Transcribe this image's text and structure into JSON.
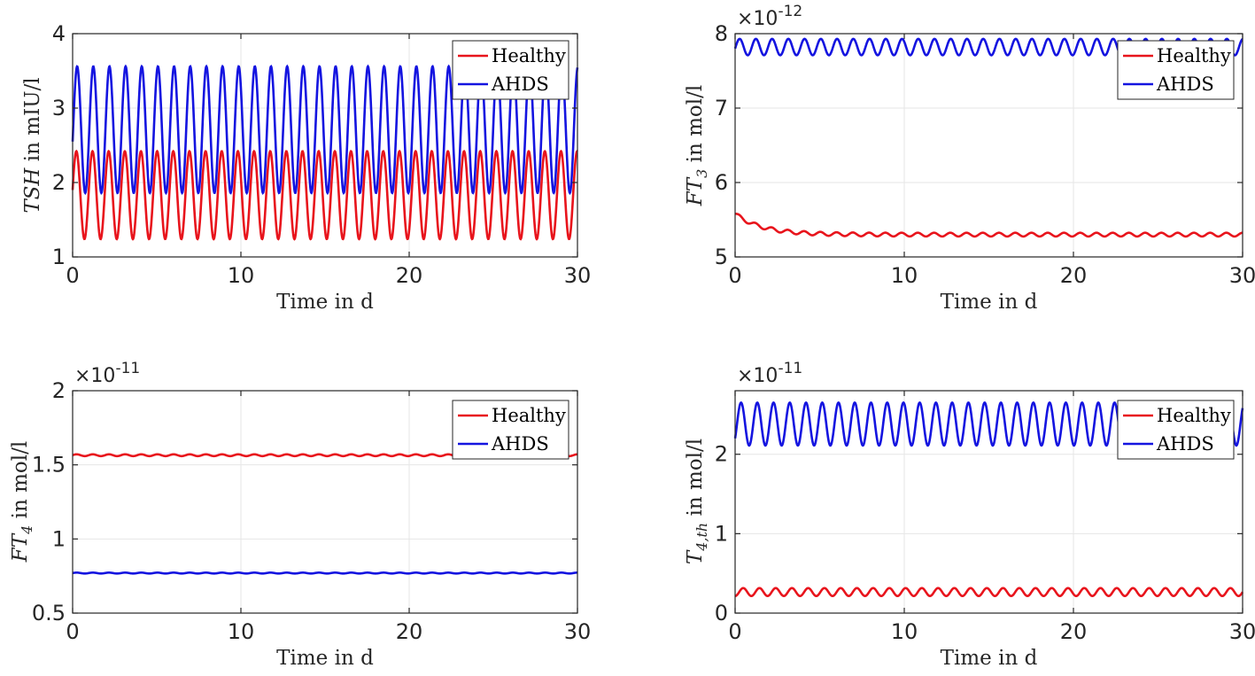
{
  "chart_data": [
    {
      "type": "line",
      "xlabel": "Time in d",
      "ylabel": {
        "var": "TSH",
        "unit": " in mIU/l",
        "sub": ""
      },
      "exponent": "",
      "xlim": [
        0,
        30
      ],
      "ylim": [
        1,
        4
      ],
      "xticks": [
        "0",
        "10",
        "20",
        "30"
      ],
      "yticks": [
        "1",
        "2",
        "3",
        "4"
      ],
      "legend": [
        "Healthy",
        "AHDS"
      ],
      "series": [
        {
          "name": "Healthy",
          "color": "#e8141c",
          "mean": 1.83,
          "amp": 0.59,
          "period": 0.96,
          "start": 1.9,
          "rise_to": 2.4,
          "note": "sinusoidal oscillation, ~31 cycles over 30 d, range 1.24 to 2.42"
        },
        {
          "name": "AHDS",
          "color": "#1414e0",
          "mean": 2.71,
          "amp": 0.85,
          "period": 0.96,
          "start": 2.55,
          "rise_to": 3.55,
          "note": "sinusoidal oscillation, range 1.86 to 3.56"
        }
      ]
    },
    {
      "type": "line",
      "xlabel": "Time in d",
      "ylabel": {
        "var": "FT",
        "sub": "3",
        "unit": " in mol/l"
      },
      "exponent": "10",
      "exponent_power": "-12",
      "xlim": [
        0,
        30
      ],
      "ylim": [
        5,
        8
      ],
      "xticks": [
        "0",
        "10",
        "20",
        "30"
      ],
      "yticks": [
        "5",
        "6",
        "7",
        "8"
      ],
      "legend": [
        "Healthy",
        "AHDS"
      ],
      "series": [
        {
          "name": "Healthy",
          "color": "#e8141c",
          "start": 5.58,
          "plateau": 5.3,
          "decay": 1.6,
          "amp": 0.025,
          "period": 0.96,
          "note": "decays from 5.58 to ~5.30 with small ripple"
        },
        {
          "name": "AHDS",
          "color": "#1414e0",
          "mean": 7.82,
          "amp": 0.11,
          "period": 0.96,
          "start": 7.8,
          "rise_to": 7.95,
          "note": "oscillation between 7.71 and 7.93"
        }
      ]
    },
    {
      "type": "line",
      "xlabel": "Time in d",
      "ylabel": {
        "var": "FT",
        "sub": "4",
        "unit": " in mol/l"
      },
      "exponent": "10",
      "exponent_power": "-11",
      "xlim": [
        0,
        30
      ],
      "ylim": [
        0.5,
        2
      ],
      "xticks": [
        "0",
        "10",
        "20",
        "30"
      ],
      "yticks": [
        "0.5",
        "1",
        "1.5",
        "2"
      ],
      "legend": [
        "Healthy",
        "AHDS"
      ],
      "series": [
        {
          "name": "Healthy",
          "color": "#e8141c",
          "mean": 1.565,
          "amp": 0.006,
          "period": 0.96,
          "note": "nearly flat ~1.56"
        },
        {
          "name": "AHDS",
          "color": "#1414e0",
          "mean": 0.77,
          "amp": 0.003,
          "period": 0.96,
          "note": "nearly flat ~0.77"
        }
      ]
    },
    {
      "type": "line",
      "xlabel": "Time in d",
      "ylabel": {
        "var": "T",
        "sub": "4,th",
        "unit": " in mol/l"
      },
      "exponent": "10",
      "exponent_power": "-11",
      "xlim": [
        0,
        30
      ],
      "ylim": [
        0,
        2.8
      ],
      "xticks": [
        "0",
        "10",
        "20",
        "30"
      ],
      "yticks": [
        "0",
        "1",
        "2"
      ],
      "legend": [
        "Healthy",
        "AHDS"
      ],
      "series": [
        {
          "name": "Healthy",
          "color": "#e8141c",
          "mean": 0.265,
          "amp": 0.05,
          "period": 0.96,
          "start": 0.15,
          "rise_to": 0.3,
          "note": "oscillation between 0.21 and 0.31"
        },
        {
          "name": "AHDS",
          "color": "#1414e0",
          "mean": 2.38,
          "amp": 0.27,
          "period": 0.96,
          "start": 2.2,
          "rise_to": 2.65,
          "note": "oscillation between 2.11 and 2.65"
        }
      ]
    }
  ]
}
